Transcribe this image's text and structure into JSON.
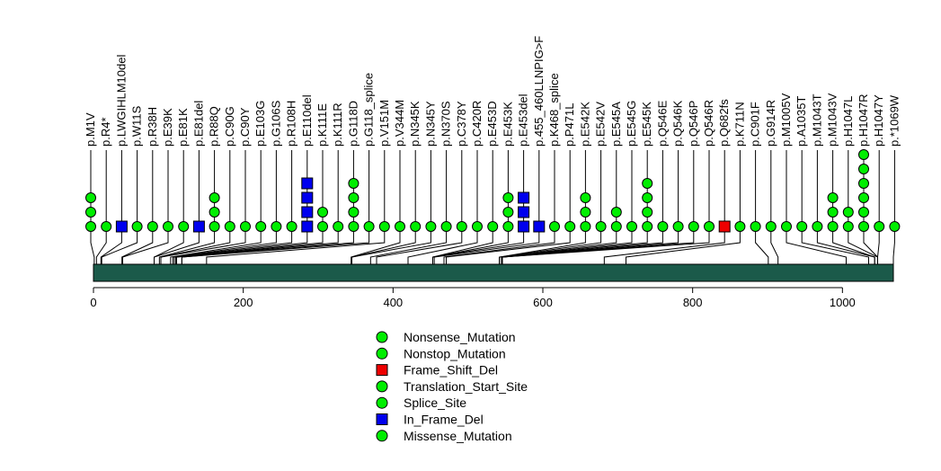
{
  "chart_data": {
    "type": "lollipop",
    "xlim": [
      0,
      1068
    ],
    "x_ticks": [
      {
        "value": 0,
        "label": "0"
      },
      {
        "value": 200,
        "label": "200"
      },
      {
        "value": 400,
        "label": "400"
      },
      {
        "value": 600,
        "label": "600"
      },
      {
        "value": 800,
        "label": "800"
      },
      {
        "value": 1000,
        "label": "1000"
      }
    ],
    "mutations": [
      {
        "label": "p.M1V",
        "pos": 1,
        "types": [
          "Missense_Mutation",
          "Missense_Mutation",
          "Missense_Mutation"
        ]
      },
      {
        "label": "p.R4*",
        "pos": 4,
        "types": [
          "Missense_Mutation"
        ]
      },
      {
        "label": "p.LWGIHLM10del",
        "pos": 10,
        "types": [
          "In_Frame_Del"
        ]
      },
      {
        "label": "p.W11S",
        "pos": 11,
        "types": [
          "Missense_Mutation"
        ]
      },
      {
        "label": "p.R38H",
        "pos": 38,
        "types": [
          "Missense_Mutation"
        ]
      },
      {
        "label": "p.E39K",
        "pos": 39,
        "types": [
          "Missense_Mutation"
        ]
      },
      {
        "label": "p.E81K",
        "pos": 81,
        "types": [
          "Missense_Mutation"
        ]
      },
      {
        "label": "p.E81del",
        "pos": 81,
        "types": [
          "In_Frame_Del"
        ]
      },
      {
        "label": "p.R88Q",
        "pos": 88,
        "types": [
          "Missense_Mutation",
          "Missense_Mutation",
          "Missense_Mutation"
        ]
      },
      {
        "label": "p.C90G",
        "pos": 90,
        "types": [
          "Missense_Mutation"
        ]
      },
      {
        "label": "p.C90Y",
        "pos": 90,
        "types": [
          "Missense_Mutation"
        ]
      },
      {
        "label": "p.E103G",
        "pos": 103,
        "types": [
          "Missense_Mutation"
        ]
      },
      {
        "label": "p.G106S",
        "pos": 106,
        "types": [
          "Missense_Mutation"
        ]
      },
      {
        "label": "p.R108H",
        "pos": 108,
        "types": [
          "Missense_Mutation"
        ]
      },
      {
        "label": "p.E110del",
        "pos": 110,
        "types": [
          "In_Frame_Del",
          "In_Frame_Del",
          "In_Frame_Del",
          "In_Frame_Del"
        ]
      },
      {
        "label": "p.K111E",
        "pos": 111,
        "types": [
          "Missense_Mutation",
          "Missense_Mutation"
        ]
      },
      {
        "label": "p.K111R",
        "pos": 111,
        "types": [
          "Missense_Mutation"
        ]
      },
      {
        "label": "p.G118D",
        "pos": 118,
        "types": [
          "Missense_Mutation",
          "Missense_Mutation",
          "Missense_Mutation",
          "Missense_Mutation"
        ]
      },
      {
        "label": "p.G118_splice",
        "pos": 118,
        "types": [
          "Missense_Mutation"
        ]
      },
      {
        "label": "p.V151M",
        "pos": 151,
        "types": [
          "Missense_Mutation"
        ]
      },
      {
        "label": "p.V344M",
        "pos": 344,
        "types": [
          "Missense_Mutation"
        ]
      },
      {
        "label": "p.N345K",
        "pos": 345,
        "types": [
          "Missense_Mutation"
        ]
      },
      {
        "label": "p.N345Y",
        "pos": 345,
        "types": [
          "Missense_Mutation"
        ]
      },
      {
        "label": "p.N370S",
        "pos": 370,
        "types": [
          "Missense_Mutation"
        ]
      },
      {
        "label": "p.C378Y",
        "pos": 378,
        "types": [
          "Missense_Mutation"
        ]
      },
      {
        "label": "p.C420R",
        "pos": 420,
        "types": [
          "Missense_Mutation"
        ]
      },
      {
        "label": "p.E453D",
        "pos": 453,
        "types": [
          "Missense_Mutation"
        ]
      },
      {
        "label": "p.E453K",
        "pos": 453,
        "types": [
          "Missense_Mutation",
          "Missense_Mutation",
          "Missense_Mutation"
        ]
      },
      {
        "label": "p.E453del",
        "pos": 453,
        "types": [
          "In_Frame_Del",
          "In_Frame_Del",
          "In_Frame_Del"
        ]
      },
      {
        "label": "p.455_460LLNPIG>F",
        "pos": 455,
        "types": [
          "In_Frame_Del"
        ]
      },
      {
        "label": "p.K468_splice",
        "pos": 468,
        "types": [
          "Missense_Mutation"
        ]
      },
      {
        "label": "p.P471L",
        "pos": 471,
        "types": [
          "Missense_Mutation"
        ]
      },
      {
        "label": "p.E542K",
        "pos": 542,
        "types": [
          "Missense_Mutation",
          "Missense_Mutation",
          "Missense_Mutation"
        ]
      },
      {
        "label": "p.E542V",
        "pos": 542,
        "types": [
          "Missense_Mutation"
        ]
      },
      {
        "label": "p.E545A",
        "pos": 545,
        "types": [
          "Missense_Mutation",
          "Missense_Mutation"
        ]
      },
      {
        "label": "p.E545G",
        "pos": 545,
        "types": [
          "Missense_Mutation"
        ]
      },
      {
        "label": "p.E545K",
        "pos": 545,
        "types": [
          "Missense_Mutation",
          "Missense_Mutation",
          "Missense_Mutation",
          "Missense_Mutation"
        ]
      },
      {
        "label": "p.Q546E",
        "pos": 546,
        "types": [
          "Missense_Mutation"
        ]
      },
      {
        "label": "p.Q546K",
        "pos": 546,
        "types": [
          "Missense_Mutation"
        ]
      },
      {
        "label": "p.Q546P",
        "pos": 546,
        "types": [
          "Missense_Mutation"
        ]
      },
      {
        "label": "p.Q546R",
        "pos": 546,
        "types": [
          "Missense_Mutation"
        ]
      },
      {
        "label": "p.Q682fs",
        "pos": 682,
        "types": [
          "Frame_Shift_Del"
        ]
      },
      {
        "label": "p.K711N",
        "pos": 711,
        "types": [
          "Missense_Mutation"
        ]
      },
      {
        "label": "p.C901F",
        "pos": 901,
        "types": [
          "Missense_Mutation"
        ]
      },
      {
        "label": "p.G914R",
        "pos": 914,
        "types": [
          "Missense_Mutation"
        ]
      },
      {
        "label": "p.M1005V",
        "pos": 1005,
        "types": [
          "Missense_Mutation"
        ]
      },
      {
        "label": "p.A1035T",
        "pos": 1035,
        "types": [
          "Missense_Mutation"
        ]
      },
      {
        "label": "p.M1043T",
        "pos": 1043,
        "types": [
          "Missense_Mutation"
        ]
      },
      {
        "label": "p.M1043V",
        "pos": 1043,
        "types": [
          "Missense_Mutation",
          "Missense_Mutation",
          "Missense_Mutation"
        ]
      },
      {
        "label": "p.H1047L",
        "pos": 1047,
        "types": [
          "Missense_Mutation",
          "Missense_Mutation"
        ]
      },
      {
        "label": "p.H1047R",
        "pos": 1047,
        "types": [
          "Missense_Mutation",
          "Missense_Mutation",
          "Missense_Mutation",
          "Missense_Mutation",
          "Missense_Mutation",
          "Missense_Mutation"
        ]
      },
      {
        "label": "p.H1047Y",
        "pos": 1047,
        "types": [
          "Missense_Mutation"
        ]
      },
      {
        "label": "p.*1069W",
        "pos": 1068,
        "types": [
          "Missense_Mutation"
        ]
      }
    ],
    "legend": [
      {
        "name": "Nonsense_Mutation",
        "shape": "circle",
        "color": "#00ee00"
      },
      {
        "name": "Nonstop_Mutation",
        "shape": "circle",
        "color": "#00ee00"
      },
      {
        "name": "Frame_Shift_Del",
        "shape": "square",
        "color": "#ee0000"
      },
      {
        "name": "Translation_Start_Site",
        "shape": "circle",
        "color": "#00ee00"
      },
      {
        "name": "Splice_Site",
        "shape": "circle",
        "color": "#00ee00"
      },
      {
        "name": "In_Frame_Del",
        "shape": "square",
        "color": "#0000ee"
      },
      {
        "name": "Missense_Mutation",
        "shape": "circle",
        "color": "#00ee00"
      }
    ],
    "domain_color": "#1b5a4a"
  }
}
